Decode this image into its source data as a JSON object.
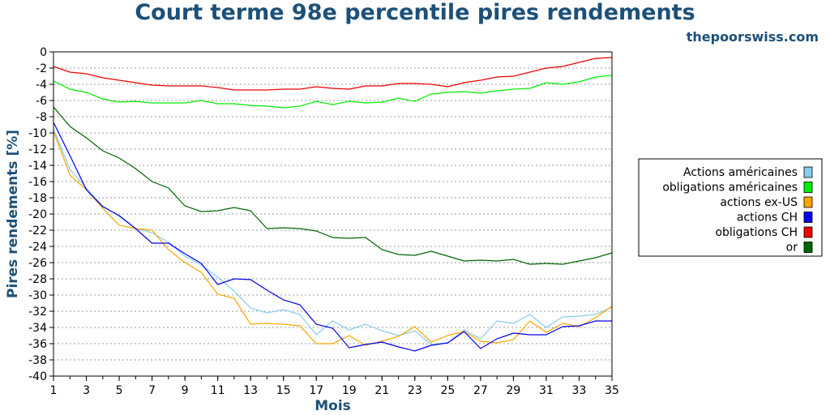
{
  "title": "Court terme 98e percentile pires rendements",
  "site": "thepoorswiss.com",
  "chart_data": {
    "type": "line",
    "xlabel": "Mois",
    "ylabel": "Pires rendements [%]",
    "xlim": [
      1,
      35
    ],
    "ylim": [
      -40,
      0
    ],
    "x_ticks": [
      1,
      3,
      5,
      7,
      9,
      11,
      13,
      15,
      17,
      19,
      21,
      23,
      25,
      27,
      29,
      31,
      33,
      35
    ],
    "y_ticks": [
      0,
      -2,
      -4,
      -6,
      -8,
      -10,
      -12,
      -14,
      -16,
      -18,
      -20,
      -22,
      -24,
      -26,
      -28,
      -30,
      -32,
      -34,
      -36,
      -38,
      -40
    ],
    "grid": true,
    "legend_position": "right",
    "x": [
      1,
      2,
      3,
      4,
      5,
      6,
      7,
      8,
      9,
      10,
      11,
      12,
      13,
      14,
      15,
      16,
      17,
      18,
      19,
      20,
      21,
      22,
      23,
      24,
      25,
      26,
      27,
      28,
      29,
      30,
      31,
      32,
      33,
      34,
      35
    ],
    "series": [
      {
        "name": "Actions américaines",
        "color": "#87ceeb",
        "values": [
          -9.5,
          -14.5,
          -16.8,
          -19.0,
          -20.3,
          -21.8,
          -22.3,
          -23.5,
          -25.2,
          -26.3,
          -27.8,
          -29.5,
          -31.6,
          -32.2,
          -31.8,
          -32.4,
          -34.9,
          -33.2,
          -34.3,
          -33.6,
          -34.4,
          -35.0,
          -34.4,
          -36.1,
          -35.9,
          -34.3,
          -35.4,
          -33.2,
          -33.5,
          -32.4,
          -34.0,
          -32.7,
          -32.6,
          -32.4,
          -31.5
        ]
      },
      {
        "name": "obligations américaines",
        "color": "#00ee00",
        "values": [
          -3.6,
          -4.6,
          -5.0,
          -5.8,
          -6.2,
          -6.1,
          -6.3,
          -6.3,
          -6.3,
          -6.0,
          -6.4,
          -6.4,
          -6.6,
          -6.7,
          -6.9,
          -6.7,
          -6.1,
          -6.5,
          -6.1,
          -6.3,
          -6.2,
          -5.7,
          -6.1,
          -5.2,
          -5.0,
          -4.9,
          -5.1,
          -4.8,
          -4.6,
          -4.5,
          -3.8,
          -4.0,
          -3.7,
          -3.1,
          -2.9
        ]
      },
      {
        "name": "actions ex-US",
        "color": "#ffa500",
        "values": [
          -9.8,
          -15.2,
          -17.0,
          -19.3,
          -21.4,
          -21.8,
          -22.0,
          -24.4,
          -26.0,
          -27.2,
          -29.9,
          -30.4,
          -33.6,
          -33.5,
          -33.6,
          -33.8,
          -36.0,
          -36.0,
          -35.0,
          -36.2,
          -35.7,
          -35.1,
          -33.9,
          -35.8,
          -35.0,
          -34.5,
          -35.7,
          -35.9,
          -35.5,
          -33.2,
          -34.6,
          -33.5,
          -33.9,
          -32.8,
          -31.4
        ]
      },
      {
        "name": "actions CH",
        "color": "#0000ee",
        "values": [
          -8.7,
          -12.8,
          -17.0,
          -19.1,
          -20.2,
          -21.8,
          -23.6,
          -23.6,
          -24.9,
          -26.1,
          -28.7,
          -28.0,
          -28.1,
          -29.4,
          -30.6,
          -31.2,
          -33.6,
          -34.1,
          -36.5,
          -36.1,
          -35.8,
          -36.4,
          -36.9,
          -36.2,
          -35.9,
          -34.5,
          -36.6,
          -35.4,
          -34.7,
          -34.9,
          -34.9,
          -33.9,
          -33.8,
          -33.2,
          -33.2
        ]
      },
      {
        "name": "obligations CH",
        "color": "#ee0000",
        "values": [
          -1.8,
          -2.5,
          -2.7,
          -3.2,
          -3.5,
          -3.8,
          -4.1,
          -4.2,
          -4.2,
          -4.2,
          -4.4,
          -4.7,
          -4.7,
          -4.7,
          -4.6,
          -4.6,
          -4.3,
          -4.5,
          -4.6,
          -4.2,
          -4.2,
          -3.9,
          -3.9,
          -4.0,
          -4.3,
          -3.8,
          -3.5,
          -3.1,
          -3.0,
          -2.5,
          -2.0,
          -1.8,
          -1.3,
          -0.8,
          -0.7
        ]
      },
      {
        "name": "or",
        "color": "#006400",
        "values": [
          -6.8,
          -9.2,
          -10.6,
          -12.2,
          -13.1,
          -14.4,
          -16.0,
          -16.8,
          -19.0,
          -19.7,
          -19.6,
          -19.2,
          -19.6,
          -21.8,
          -21.7,
          -21.8,
          -22.1,
          -22.9,
          -23.0,
          -22.9,
          -24.4,
          -25.0,
          -25.1,
          -24.6,
          -25.2,
          -25.8,
          -25.7,
          -25.8,
          -25.6,
          -26.2,
          -26.1,
          -26.2,
          -25.8,
          -25.4,
          -24.8
        ]
      }
    ]
  }
}
